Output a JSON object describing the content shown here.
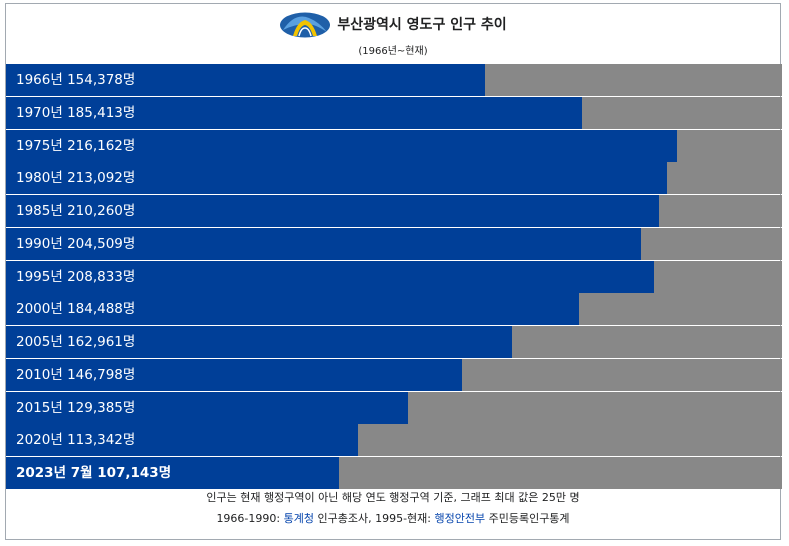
{
  "header": {
    "title": "부산광역시 영도구 인구 추이",
    "subtitle": "(1966년~현재)",
    "logo_icon": "yeongdo-district-logo"
  },
  "chart_data": {
    "type": "bar",
    "orientation": "horizontal",
    "xlim": [
      0,
      250000
    ],
    "categories": [
      "1966년",
      "1970년",
      "1975년",
      "1980년",
      "1985년",
      "1990년",
      "1995년",
      "2000년",
      "2005년",
      "2010년",
      "2015년",
      "2020년",
      "2023년 7월"
    ],
    "values": [
      154378,
      185413,
      216162,
      213092,
      210260,
      204509,
      208833,
      184488,
      162961,
      146798,
      129385,
      113342,
      107143
    ],
    "labels": [
      "1966년 154,378명",
      "1970년 185,413명",
      "1975년 216,162명",
      "1980년 213,092명",
      "1985년 210,260명",
      "1990년 204,509명",
      "1995년 208,833명",
      "2000년 184,488명",
      "2005년 162,961명",
      "2010년 146,798명",
      "2015년 129,385명",
      "2020년 113,342명",
      "2023년 7월 107,143명"
    ],
    "bold_index": 12,
    "colors": {
      "bar": "#003f98",
      "track": "#888888"
    }
  },
  "footer": {
    "note": "인구는 현재 행정구역이 아닌 해당 연도 행정구역 기준, 그래프 최대 값은 25만 명",
    "source_a": "1966-1990: ",
    "source_a_link": "통계청",
    "source_a_rest": " 인구총조사, 1995-현재: ",
    "source_b_link": "행정안전부",
    "source_b_rest": " 주민등록인구통계"
  }
}
